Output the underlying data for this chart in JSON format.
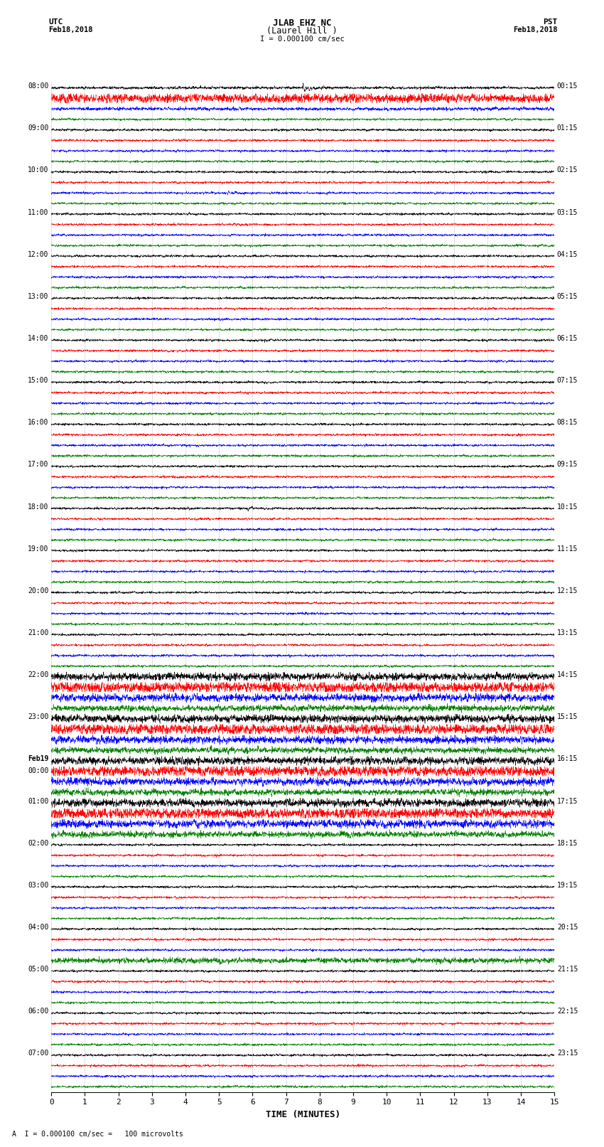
{
  "title_line1": "JLAB EHZ NC",
  "title_line2": "(Laurel Hill )",
  "scale_text": "I = 0.000100 cm/sec",
  "utc_label": "UTC",
  "pst_label": "PST",
  "date_left": "Feb18,2018",
  "date_right": "Feb18,2018",
  "xlabel": "TIME (MINUTES)",
  "footer_text": "A  I = 0.000100 cm/sec =   100 microvolts",
  "left_times_utc": [
    "08:00",
    "09:00",
    "10:00",
    "11:00",
    "12:00",
    "13:00",
    "14:00",
    "15:00",
    "16:00",
    "17:00",
    "18:00",
    "19:00",
    "20:00",
    "21:00",
    "22:00",
    "23:00",
    "Feb19\n00:00",
    "01:00",
    "02:00",
    "03:00",
    "04:00",
    "05:00",
    "06:00",
    "07:00"
  ],
  "right_times_pst": [
    "00:15",
    "01:15",
    "02:15",
    "03:15",
    "04:15",
    "05:15",
    "06:15",
    "07:15",
    "08:15",
    "09:15",
    "10:15",
    "11:15",
    "12:15",
    "13:15",
    "14:15",
    "15:15",
    "16:15",
    "17:15",
    "18:15",
    "19:15",
    "20:15",
    "21:15",
    "22:15",
    "23:15"
  ],
  "num_rows": 24,
  "traces_per_row": 4,
  "colors": [
    "black",
    "red",
    "blue",
    "green"
  ],
  "bg_color": "#ffffff",
  "fig_width": 8.5,
  "fig_height": 16.13,
  "dpi": 100,
  "xticks": [
    0,
    1,
    2,
    3,
    4,
    5,
    6,
    7,
    8,
    9,
    10,
    11,
    12,
    13,
    14,
    15
  ],
  "xlim": [
    0,
    15
  ],
  "noise_seed": 42
}
